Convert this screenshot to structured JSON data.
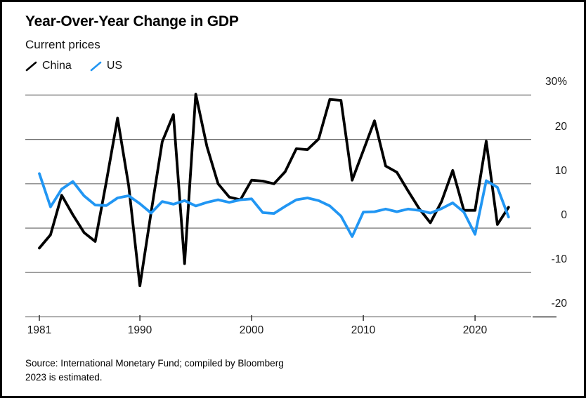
{
  "header": {
    "title": "Year-Over-Year Change in GDP",
    "subtitle": "Current prices"
  },
  "legend": {
    "items": [
      {
        "label": "China",
        "color": "#000000"
      },
      {
        "label": "US",
        "color": "#2196f3"
      }
    ]
  },
  "source": {
    "line1": "Source: International Monetary Fund; compiled by Bloomberg",
    "line2": "2023 is estimated."
  },
  "style": {
    "background": "#ffffff",
    "frame_color": "#000000",
    "grid_color": "#6e6e6e",
    "tick_color": "#333333",
    "china_color": "#000000",
    "us_color": "#2196f3"
  },
  "chart_data": {
    "type": "line",
    "title": "Year-Over-Year Change in GDP",
    "subtitle": "Current prices",
    "unit": "percent",
    "xlabel": "",
    "ylabel": "",
    "grid": "horizontal",
    "legend_position": "top-left",
    "ylim": [
      -20,
      30
    ],
    "x_ticks": [
      1981,
      1990,
      2000,
      2010,
      2020
    ],
    "x_tick_labels": [
      "1981",
      "1990",
      "2000",
      "2010",
      "2020"
    ],
    "y_gridlines": [
      30,
      20,
      10,
      0,
      -10,
      -20
    ],
    "y_gridline_labels": [
      "30%",
      "20",
      "10",
      "0",
      "-10",
      "-20"
    ],
    "years": [
      1981,
      1982,
      1983,
      1984,
      1985,
      1986,
      1987,
      1988,
      1989,
      1990,
      1991,
      1992,
      1993,
      1994,
      1995,
      1996,
      1997,
      1998,
      1999,
      2000,
      2001,
      2002,
      2003,
      2004,
      2005,
      2006,
      2007,
      2008,
      2009,
      2010,
      2011,
      2012,
      2013,
      2014,
      2015,
      2016,
      2017,
      2018,
      2019,
      2020,
      2021,
      2022,
      2023
    ],
    "series": [
      {
        "name": "China",
        "color": "#000000",
        "values": [
          -4.5,
          -1.5,
          7.4,
          3.0,
          -1.0,
          -3.0,
          10.5,
          24.8,
          9.5,
          -13.0,
          3.5,
          19.5,
          25.6,
          -8.0,
          30.2,
          18.4,
          10.0,
          7.0,
          6.4,
          10.8,
          10.6,
          10.0,
          12.7,
          17.9,
          17.7,
          20.1,
          29.0,
          28.8,
          10.8,
          17.5,
          24.2,
          14.0,
          12.6,
          8.4,
          4.4,
          1.2,
          6.0,
          13.0,
          4.0,
          4.0,
          19.6,
          0.8,
          4.7
        ]
      },
      {
        "name": "US",
        "color": "#2196f3",
        "values": [
          12.3,
          4.8,
          8.8,
          10.5,
          7.3,
          5.2,
          5.1,
          6.8,
          7.3,
          5.5,
          3.4,
          6.0,
          5.4,
          6.2,
          5.0,
          5.8,
          6.4,
          5.8,
          6.4,
          6.6,
          3.5,
          3.3,
          4.9,
          6.4,
          6.8,
          6.2,
          5.0,
          2.7,
          -1.9,
          3.6,
          3.7,
          4.3,
          3.7,
          4.3,
          4.0,
          3.4,
          4.4,
          5.7,
          3.6,
          -1.4,
          10.7,
          9.2,
          2.5
        ]
      }
    ]
  }
}
